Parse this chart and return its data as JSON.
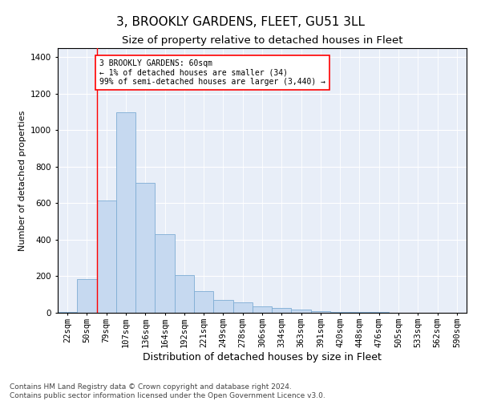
{
  "title": "3, BROOKLY GARDENS, FLEET, GU51 3LL",
  "subtitle": "Size of property relative to detached houses in Fleet",
  "xlabel": "Distribution of detached houses by size in Fleet",
  "ylabel": "Number of detached properties",
  "bar_color": "#c6d9f0",
  "bar_edge_color": "#7eadd4",
  "background_color": "#e8eef8",
  "annotation_lines": [
    "3 BROOKLY GARDENS: 60sqm",
    "← 1% of detached houses are smaller (34)",
    "99% of semi-detached houses are larger (3,440) →"
  ],
  "red_line_x": 1.5,
  "categories": [
    "22sqm",
    "50sqm",
    "79sqm",
    "107sqm",
    "136sqm",
    "164sqm",
    "192sqm",
    "221sqm",
    "249sqm",
    "278sqm",
    "306sqm",
    "334sqm",
    "363sqm",
    "391sqm",
    "420sqm",
    "448sqm",
    "476sqm",
    "505sqm",
    "533sqm",
    "562sqm",
    "590sqm"
  ],
  "values": [
    5,
    185,
    615,
    1100,
    710,
    430,
    205,
    120,
    70,
    55,
    35,
    25,
    18,
    8,
    5,
    5,
    3,
    2,
    1,
    1,
    1
  ],
  "ylim": [
    0,
    1450
  ],
  "yticks": [
    0,
    200,
    400,
    600,
    800,
    1000,
    1200,
    1400
  ],
  "footer": "Contains HM Land Registry data © Crown copyright and database right 2024.\nContains public sector information licensed under the Open Government Licence v3.0.",
  "title_fontsize": 11,
  "subtitle_fontsize": 9.5,
  "xlabel_fontsize": 9,
  "ylabel_fontsize": 8,
  "tick_fontsize": 7.5,
  "footer_fontsize": 6.5
}
